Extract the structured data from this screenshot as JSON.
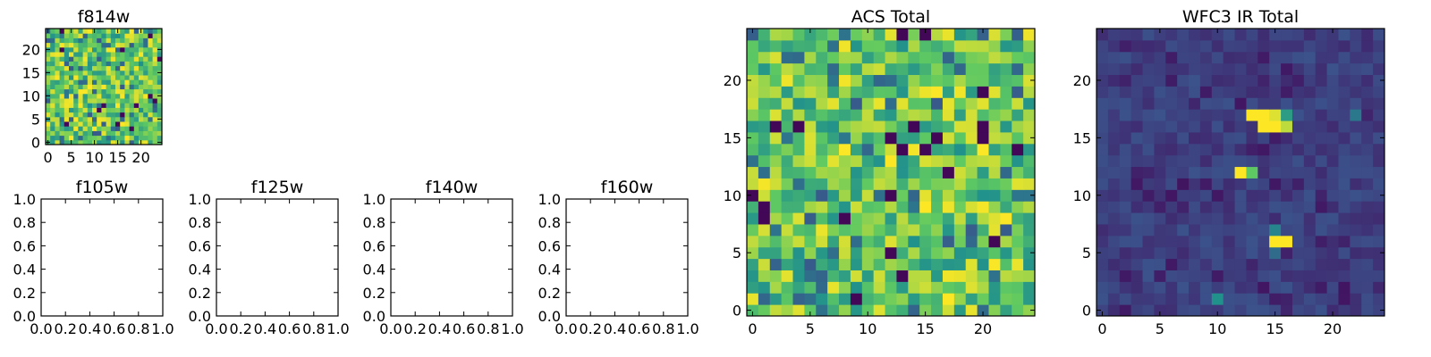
{
  "chart_data": [
    {
      "type": "heatmap",
      "title": "f814w",
      "grid_size": 25,
      "colormap": "viridis",
      "pattern": "noise_high",
      "seed": 11,
      "xticks": [
        0,
        5,
        10,
        15,
        20
      ],
      "yticks": [
        0,
        5,
        10,
        15,
        20
      ],
      "xlim": [
        -0.5,
        24.5
      ],
      "ylim": [
        -0.5,
        24.5
      ]
    },
    {
      "type": "heatmap",
      "title": "f105w",
      "empty": true,
      "xticks": [
        "0.0",
        "0.2",
        "0.4",
        "0.6",
        "0.8",
        "1.0"
      ],
      "yticks": [
        "0.0",
        "0.2",
        "0.4",
        "0.6",
        "0.8",
        "1.0"
      ],
      "xlim": [
        0,
        1
      ],
      "ylim": [
        0,
        1
      ]
    },
    {
      "type": "heatmap",
      "title": "f125w",
      "empty": true,
      "xticks": [
        "0.0",
        "0.2",
        "0.4",
        "0.6",
        "0.8",
        "1.0"
      ],
      "yticks": [
        "0.0",
        "0.2",
        "0.4",
        "0.6",
        "0.8",
        "1.0"
      ],
      "xlim": [
        0,
        1
      ],
      "ylim": [
        0,
        1
      ]
    },
    {
      "type": "heatmap",
      "title": "f140w",
      "empty": true,
      "xticks": [
        "0.0",
        "0.2",
        "0.4",
        "0.6",
        "0.8",
        "1.0"
      ],
      "yticks": [
        "0.0",
        "0.2",
        "0.4",
        "0.6",
        "0.8",
        "1.0"
      ],
      "xlim": [
        0,
        1
      ],
      "ylim": [
        0,
        1
      ]
    },
    {
      "type": "heatmap",
      "title": "f160w",
      "empty": true,
      "xticks": [
        "0.0",
        "0.2",
        "0.4",
        "0.6",
        "0.8",
        "1.0"
      ],
      "yticks": [
        "0.0",
        "0.2",
        "0.4",
        "0.6",
        "0.8",
        "1.0"
      ],
      "xlim": [
        0,
        1
      ],
      "ylim": [
        0,
        1
      ]
    },
    {
      "type": "heatmap",
      "title": "ACS Total",
      "grid_size": 25,
      "colormap": "viridis",
      "pattern": "noise_high",
      "seed": 23,
      "xticks": [
        0,
        5,
        10,
        15,
        20
      ],
      "yticks": [
        0,
        5,
        10,
        15,
        20
      ],
      "xlim": [
        -0.5,
        24.5
      ],
      "ylim": [
        -0.5,
        24.5
      ]
    },
    {
      "type": "heatmap",
      "title": "WFC3 IR Total",
      "grid_size": 25,
      "colormap": "viridis",
      "pattern": "noise_low_sources",
      "seed": 37,
      "xticks": [
        0,
        5,
        10,
        15,
        20
      ],
      "yticks": [
        0,
        5,
        10,
        15,
        20
      ],
      "xlim": [
        -0.5,
        24.5
      ],
      "ylim": [
        -0.5,
        24.5
      ],
      "bright_cells": [
        {
          "x": 13,
          "y": 17,
          "value": 1.0
        },
        {
          "x": 14,
          "y": 17,
          "value": 1.0
        },
        {
          "x": 15,
          "y": 17,
          "value": 0.95
        },
        {
          "x": 16,
          "y": 17,
          "value": 0.55
        },
        {
          "x": 14,
          "y": 16,
          "value": 1.0
        },
        {
          "x": 15,
          "y": 16,
          "value": 1.0
        },
        {
          "x": 16,
          "y": 16,
          "value": 0.9
        },
        {
          "x": 12,
          "y": 12,
          "value": 1.0
        },
        {
          "x": 13,
          "y": 12,
          "value": 0.75
        },
        {
          "x": 15,
          "y": 6,
          "value": 1.0
        },
        {
          "x": 16,
          "y": 6,
          "value": 1.0
        },
        {
          "x": 15,
          "y": 7,
          "value": 0.45
        },
        {
          "x": 15,
          "y": 5,
          "value": 0.35
        },
        {
          "x": 10,
          "y": 1,
          "value": 0.5
        },
        {
          "x": 22,
          "y": 17,
          "value": 0.4
        }
      ]
    }
  ]
}
